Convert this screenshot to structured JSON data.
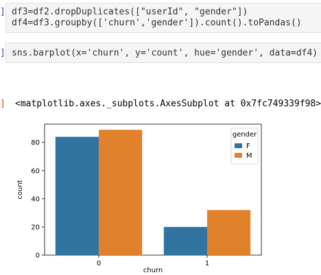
{
  "cells": [
    {
      "prompt": "]:",
      "lines": [
        "df3=df2.dropDuplicates([\"userId\", \"gender\"])",
        "df4=df3.groupby(['churn','gender']).count().toPandas()"
      ]
    },
    {
      "prompt": "]:",
      "lines": [
        "sns.barplot(x='churn', y='count', hue='gender', data=df4)"
      ]
    }
  ],
  "output": {
    "prompt": "]:",
    "text": "<matplotlib.axes._subplots.AxesSubplot at 0x7fc749339f98>"
  },
  "colors": {
    "F": "#3274a1",
    "M": "#e1812c",
    "prompt_in": "#303f9f",
    "prompt_out": "#d84315"
  },
  "chart_data": {
    "type": "bar",
    "categories": [
      "0",
      "1"
    ],
    "series": [
      {
        "name": "F",
        "values": [
          84,
          20
        ]
      },
      {
        "name": "M",
        "values": [
          89,
          32
        ]
      }
    ],
    "xlabel": "churn",
    "ylabel": "count",
    "ylim": [
      0,
      93
    ],
    "yticks": [
      0,
      20,
      40,
      60,
      80
    ],
    "legend": {
      "title": "gender",
      "entries": [
        "F",
        "M"
      ],
      "placement": "top-right"
    },
    "grid": false
  }
}
